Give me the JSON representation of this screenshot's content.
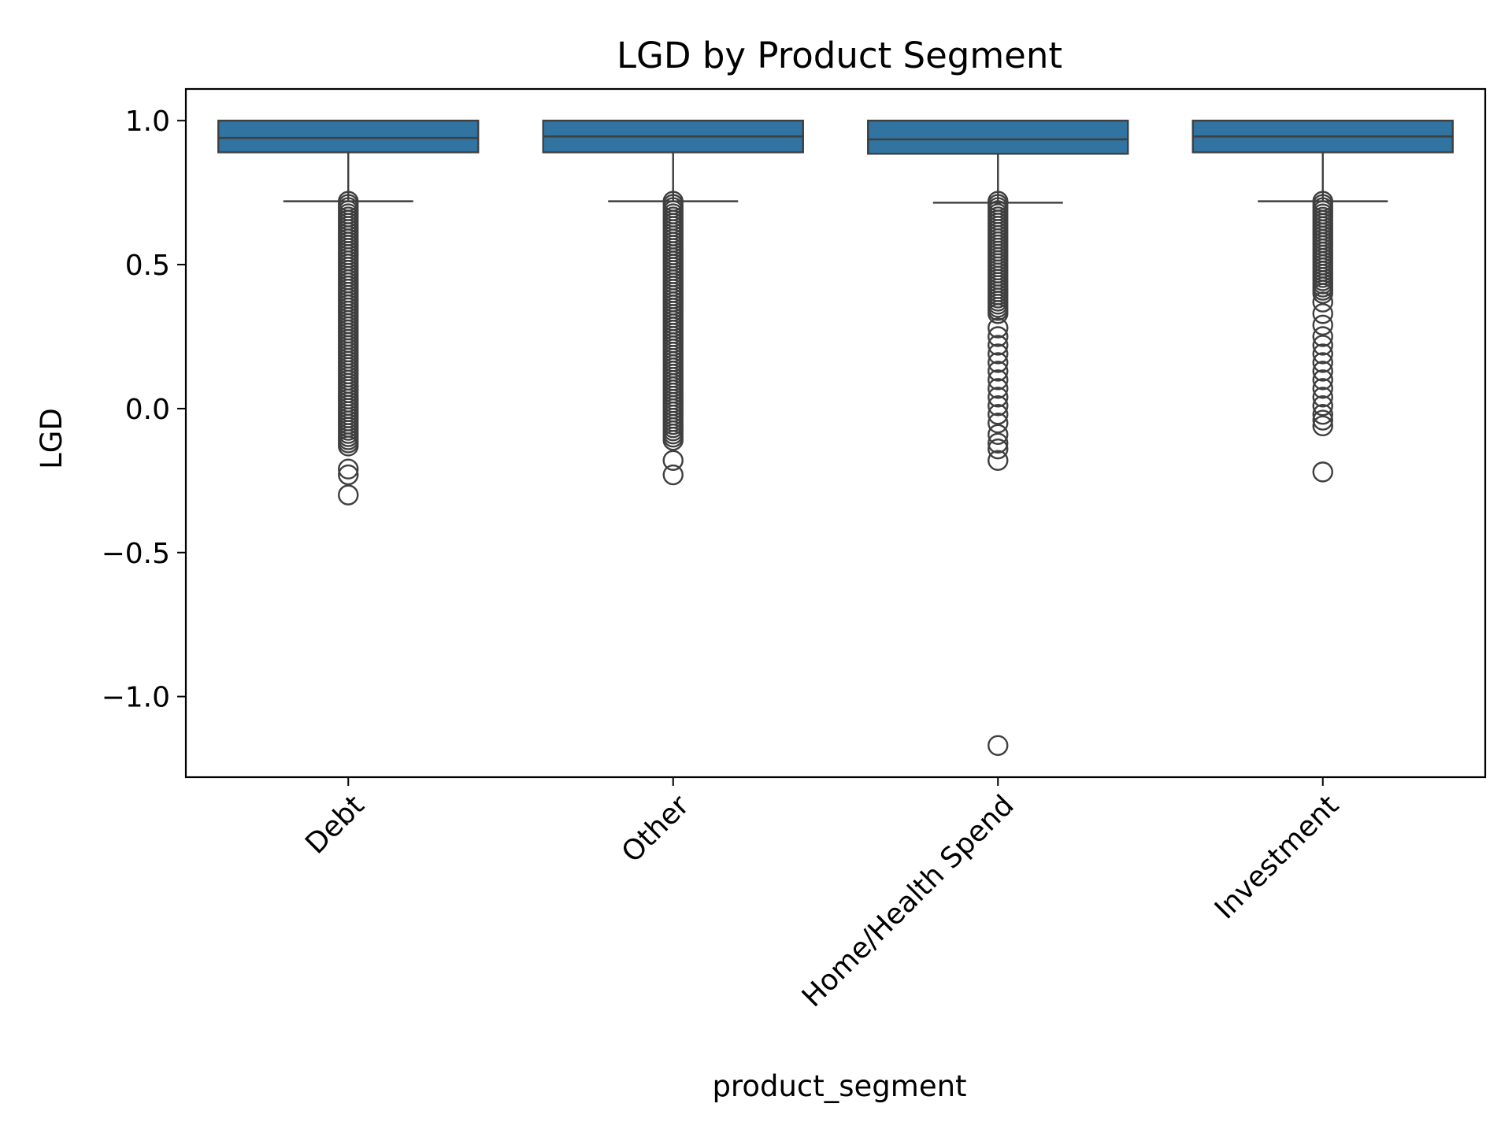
{
  "chart_data": {
    "type": "box",
    "title": "LGD by Product Segment",
    "xlabel": "product_segment",
    "ylabel": "LGD",
    "ylim": [
      -1.28,
      1.11
    ],
    "yticks": [
      1.0,
      0.5,
      0.0,
      -0.5,
      -1.0
    ],
    "ytick_labels": [
      "1.0",
      "0.5",
      "0.0",
      "−0.5",
      "−1.0"
    ],
    "categories": [
      "Debt",
      "Other",
      "Home/Health Spend",
      "Investment"
    ],
    "box_color": "#3274a1",
    "line_color": "#3f3f3f",
    "series": [
      {
        "name": "Debt",
        "q1": 0.89,
        "median": 0.94,
        "q3": 1.0,
        "whisker_low": 0.72,
        "whisker_high": 1.0,
        "outlier_dense_range": [
          -0.13,
          0.72
        ],
        "outliers": [
          -0.21,
          -0.23,
          -0.3
        ]
      },
      {
        "name": "Other",
        "q1": 0.89,
        "median": 0.945,
        "q3": 1.0,
        "whisker_low": 0.72,
        "whisker_high": 1.0,
        "outlier_dense_range": [
          -0.11,
          0.72
        ],
        "outliers": [
          -0.18,
          -0.23
        ]
      },
      {
        "name": "Home/Health Spend",
        "q1": 0.885,
        "median": 0.935,
        "q3": 1.0,
        "whisker_low": 0.715,
        "whisker_high": 1.0,
        "outlier_dense_range": [
          0.33,
          0.72
        ],
        "outliers": [
          0.28,
          0.25,
          0.22,
          0.19,
          0.16,
          0.13,
          0.1,
          0.07,
          0.04,
          0.01,
          -0.02,
          -0.05,
          -0.09,
          -0.12,
          -0.14,
          -0.18,
          -1.17
        ]
      },
      {
        "name": "Investment",
        "q1": 0.89,
        "median": 0.945,
        "q3": 1.0,
        "whisker_low": 0.72,
        "whisker_high": 1.0,
        "outlier_dense_range": [
          0.4,
          0.72
        ],
        "outliers": [
          0.37,
          0.33,
          0.29,
          0.25,
          0.22,
          0.19,
          0.16,
          0.13,
          0.1,
          0.07,
          0.04,
          0.01,
          -0.02,
          -0.04,
          -0.06,
          -0.22
        ]
      }
    ]
  }
}
